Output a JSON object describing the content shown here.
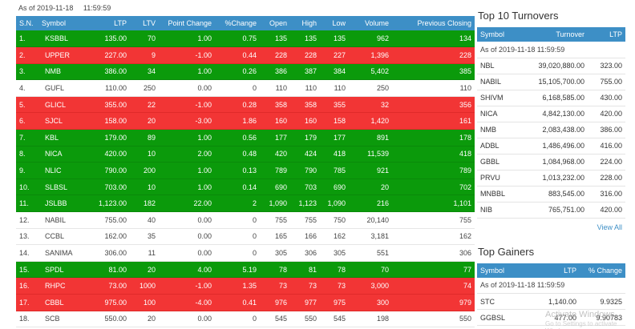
{
  "market": {
    "as_of_date": "As of 2019-11-18",
    "as_of_time": "11:59:59",
    "columns": [
      "S.N.",
      "Symbol",
      "LTP",
      "LTV",
      "Point Change",
      "%Change",
      "Open",
      "High",
      "Low",
      "Volume",
      "Previous Closing"
    ],
    "rows": [
      {
        "sn": "1.",
        "symbol": "KSBBL",
        "ltp": "135.00",
        "ltv": "70",
        "point": "1.00",
        "pct": "0.75",
        "open": "135",
        "high": "135",
        "low": "135",
        "volume": "962",
        "prev": "134",
        "dir": "up"
      },
      {
        "sn": "2.",
        "symbol": "UPPER",
        "ltp": "227.00",
        "ltv": "9",
        "point": "-1.00",
        "pct": "0.44",
        "open": "228",
        "high": "228",
        "low": "227",
        "volume": "1,396",
        "prev": "228",
        "dir": "down"
      },
      {
        "sn": "3.",
        "symbol": "NMB",
        "ltp": "386.00",
        "ltv": "34",
        "point": "1.00",
        "pct": "0.26",
        "open": "386",
        "high": "387",
        "low": "384",
        "volume": "5,402",
        "prev": "385",
        "dir": "up"
      },
      {
        "sn": "4.",
        "symbol": "GUFL",
        "ltp": "110.00",
        "ltv": "250",
        "point": "0.00",
        "pct": "0",
        "open": "110",
        "high": "110",
        "low": "110",
        "volume": "250",
        "prev": "110",
        "dir": "flat"
      },
      {
        "sn": "5.",
        "symbol": "GLICL",
        "ltp": "355.00",
        "ltv": "22",
        "point": "-1.00",
        "pct": "0.28",
        "open": "358",
        "high": "358",
        "low": "355",
        "volume": "32",
        "prev": "356",
        "dir": "down"
      },
      {
        "sn": "6.",
        "symbol": "SJCL",
        "ltp": "158.00",
        "ltv": "20",
        "point": "-3.00",
        "pct": "1.86",
        "open": "160",
        "high": "160",
        "low": "158",
        "volume": "1,420",
        "prev": "161",
        "dir": "down"
      },
      {
        "sn": "7.",
        "symbol": "KBL",
        "ltp": "179.00",
        "ltv": "89",
        "point": "1.00",
        "pct": "0.56",
        "open": "177",
        "high": "179",
        "low": "177",
        "volume": "891",
        "prev": "178",
        "dir": "up"
      },
      {
        "sn": "8.",
        "symbol": "NICA",
        "ltp": "420.00",
        "ltv": "10",
        "point": "2.00",
        "pct": "0.48",
        "open": "420",
        "high": "424",
        "low": "418",
        "volume": "11,539",
        "prev": "418",
        "dir": "up"
      },
      {
        "sn": "9.",
        "symbol": "NLIC",
        "ltp": "790.00",
        "ltv": "200",
        "point": "1.00",
        "pct": "0.13",
        "open": "789",
        "high": "790",
        "low": "785",
        "volume": "921",
        "prev": "789",
        "dir": "up"
      },
      {
        "sn": "10.",
        "symbol": "SLBSL",
        "ltp": "703.00",
        "ltv": "10",
        "point": "1.00",
        "pct": "0.14",
        "open": "690",
        "high": "703",
        "low": "690",
        "volume": "20",
        "prev": "702",
        "dir": "up"
      },
      {
        "sn": "11.",
        "symbol": "JSLBB",
        "ltp": "1,123.00",
        "ltv": "182",
        "point": "22.00",
        "pct": "2",
        "open": "1,090",
        "high": "1,123",
        "low": "1,090",
        "volume": "216",
        "prev": "1,101",
        "dir": "up"
      },
      {
        "sn": "12.",
        "symbol": "NABIL",
        "ltp": "755.00",
        "ltv": "40",
        "point": "0.00",
        "pct": "0",
        "open": "755",
        "high": "755",
        "low": "750",
        "volume": "20,140",
        "prev": "755",
        "dir": "flat"
      },
      {
        "sn": "13.",
        "symbol": "CCBL",
        "ltp": "162.00",
        "ltv": "35",
        "point": "0.00",
        "pct": "0",
        "open": "165",
        "high": "166",
        "low": "162",
        "volume": "3,181",
        "prev": "162",
        "dir": "flat"
      },
      {
        "sn": "14.",
        "symbol": "SANIMA",
        "ltp": "306.00",
        "ltv": "11",
        "point": "0.00",
        "pct": "0",
        "open": "305",
        "high": "306",
        "low": "305",
        "volume": "551",
        "prev": "306",
        "dir": "flat"
      },
      {
        "sn": "15.",
        "symbol": "SPDL",
        "ltp": "81.00",
        "ltv": "20",
        "point": "4.00",
        "pct": "5.19",
        "open": "78",
        "high": "81",
        "low": "78",
        "volume": "70",
        "prev": "77",
        "dir": "up"
      },
      {
        "sn": "16.",
        "symbol": "RHPC",
        "ltp": "73.00",
        "ltv": "1000",
        "point": "-1.00",
        "pct": "1.35",
        "open": "73",
        "high": "73",
        "low": "73",
        "volume": "3,000",
        "prev": "74",
        "dir": "down"
      },
      {
        "sn": "17.",
        "symbol": "CBBL",
        "ltp": "975.00",
        "ltv": "100",
        "point": "-4.00",
        "pct": "0.41",
        "open": "976",
        "high": "977",
        "low": "975",
        "volume": "300",
        "prev": "979",
        "dir": "down"
      },
      {
        "sn": "18.",
        "symbol": "SCB",
        "ltp": "550.00",
        "ltv": "20",
        "point": "0.00",
        "pct": "0",
        "open": "545",
        "high": "550",
        "low": "545",
        "volume": "198",
        "prev": "550",
        "dir": "flat"
      }
    ]
  },
  "turnovers": {
    "title": "Top 10 Turnovers",
    "columns": [
      "Symbol",
      "Turnover",
      "LTP"
    ],
    "as_of": "As of 2019-11-18 11:59:59",
    "rows": [
      {
        "symbol": "NBL",
        "turnover": "39,020,880.00",
        "ltp": "323.00"
      },
      {
        "symbol": "NABIL",
        "turnover": "15,105,700.00",
        "ltp": "755.00"
      },
      {
        "symbol": "SHIVM",
        "turnover": "6,168,585.00",
        "ltp": "430.00"
      },
      {
        "symbol": "NICA",
        "turnover": "4,842,130.00",
        "ltp": "420.00"
      },
      {
        "symbol": "NMB",
        "turnover": "2,083,438.00",
        "ltp": "386.00"
      },
      {
        "symbol": "ADBL",
        "turnover": "1,486,496.00",
        "ltp": "416.00"
      },
      {
        "symbol": "GBBL",
        "turnover": "1,084,968.00",
        "ltp": "224.00"
      },
      {
        "symbol": "PRVU",
        "turnover": "1,013,232.00",
        "ltp": "228.00"
      },
      {
        "symbol": "MNBBL",
        "turnover": "883,545.00",
        "ltp": "316.00"
      },
      {
        "symbol": "NIB",
        "turnover": "765,751.00",
        "ltp": "420.00"
      }
    ],
    "view_all": "View All"
  },
  "gainers": {
    "title": "Top Gainers",
    "columns": [
      "Symbol",
      "LTP",
      "% Change"
    ],
    "as_of": "As of 2019-11-18 11:59:59",
    "rows": [
      {
        "symbol": "STC",
        "ltp": "1,140.00",
        "pct": "9.9325"
      },
      {
        "symbol": "GGBSL",
        "ltp": "477.00",
        "pct": "9.90783"
      }
    ]
  },
  "watermark": {
    "line1": "Activate Windows",
    "line2": "Go to Settings to activate Windows."
  },
  "colors": {
    "header": "#3d8fc6",
    "up": "#0b9a0b",
    "down": "#f23535"
  }
}
